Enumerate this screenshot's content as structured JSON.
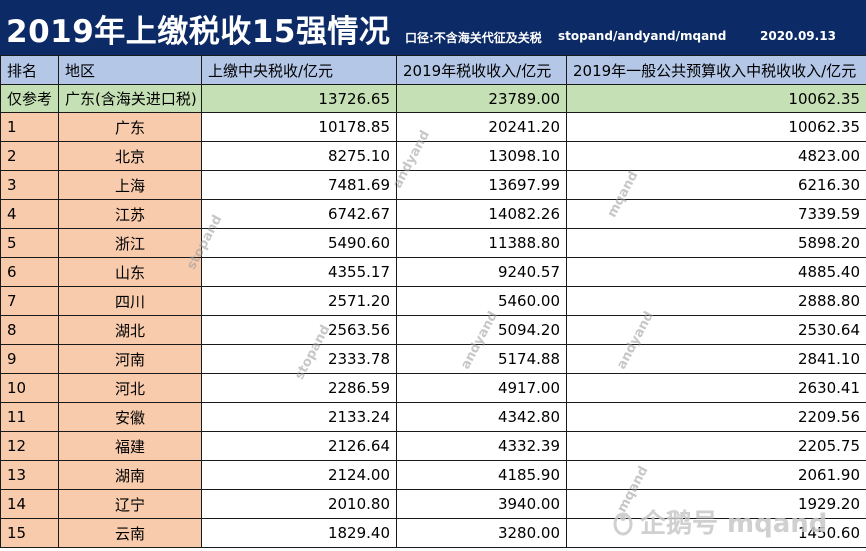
{
  "header": {
    "title": "2019年上缴税收15强情况",
    "scope": "口径:不含海关代征及关税",
    "authors": "stopand/andyand/mqand",
    "date": "2020.09.13"
  },
  "table": {
    "columns": [
      "排名",
      "地区",
      "上缴中央税收/亿元",
      "2019年税收收入/亿元",
      "2019年一般公共预算收入中税收收入/亿元"
    ],
    "reference_row": {
      "rank": "仅参考",
      "region": "广东(含海关进口税)",
      "central_tax": "13726.65",
      "tax_revenue": "23789.00",
      "budget_tax": "10062.35"
    },
    "rows": [
      {
        "rank": "1",
        "region": "广东",
        "central_tax": "10178.85",
        "tax_revenue": "20241.20",
        "budget_tax": "10062.35"
      },
      {
        "rank": "2",
        "region": "北京",
        "central_tax": "8275.10",
        "tax_revenue": "13098.10",
        "budget_tax": "4823.00"
      },
      {
        "rank": "3",
        "region": "上海",
        "central_tax": "7481.69",
        "tax_revenue": "13697.99",
        "budget_tax": "6216.30"
      },
      {
        "rank": "4",
        "region": "江苏",
        "central_tax": "6742.67",
        "tax_revenue": "14082.26",
        "budget_tax": "7339.59"
      },
      {
        "rank": "5",
        "region": "浙江",
        "central_tax": "5490.60",
        "tax_revenue": "11388.80",
        "budget_tax": "5898.20"
      },
      {
        "rank": "6",
        "region": "山东",
        "central_tax": "4355.17",
        "tax_revenue": "9240.57",
        "budget_tax": "4885.40"
      },
      {
        "rank": "7",
        "region": "四川",
        "central_tax": "2571.20",
        "tax_revenue": "5460.00",
        "budget_tax": "2888.80"
      },
      {
        "rank": "8",
        "region": "湖北",
        "central_tax": "2563.56",
        "tax_revenue": "5094.20",
        "budget_tax": "2530.64"
      },
      {
        "rank": "9",
        "region": "河南",
        "central_tax": "2333.78",
        "tax_revenue": "5174.88",
        "budget_tax": "2841.10"
      },
      {
        "rank": "10",
        "region": "河北",
        "central_tax": "2286.59",
        "tax_revenue": "4917.00",
        "budget_tax": "2630.41"
      },
      {
        "rank": "11",
        "region": "安徽",
        "central_tax": "2133.24",
        "tax_revenue": "4342.80",
        "budget_tax": "2209.56"
      },
      {
        "rank": "12",
        "region": "福建",
        "central_tax": "2126.64",
        "tax_revenue": "4332.39",
        "budget_tax": "2205.75"
      },
      {
        "rank": "13",
        "region": "湖南",
        "central_tax": "2124.00",
        "tax_revenue": "4185.90",
        "budget_tax": "2061.90"
      },
      {
        "rank": "14",
        "region": "辽宁",
        "central_tax": "2010.80",
        "tax_revenue": "3940.00",
        "budget_tax": "1929.20"
      },
      {
        "rank": "15",
        "region": "云南",
        "central_tax": "1829.40",
        "tax_revenue": "3280.00",
        "budget_tax": "1450.60"
      }
    ]
  },
  "watermarks": {
    "marks": [
      "stopand",
      "andyand",
      "mqand",
      "andyand",
      "stopand",
      "andyand",
      "mqand"
    ],
    "platform": "企鹅号 mqand",
    "platform_icon": "penguin-icon"
  },
  "colors": {
    "header_bg": "#0b2a66",
    "column_header_bg": "#b4c7e7",
    "reference_bg": "#c5e0b4",
    "rank_region_bg": "#f8cbad"
  }
}
